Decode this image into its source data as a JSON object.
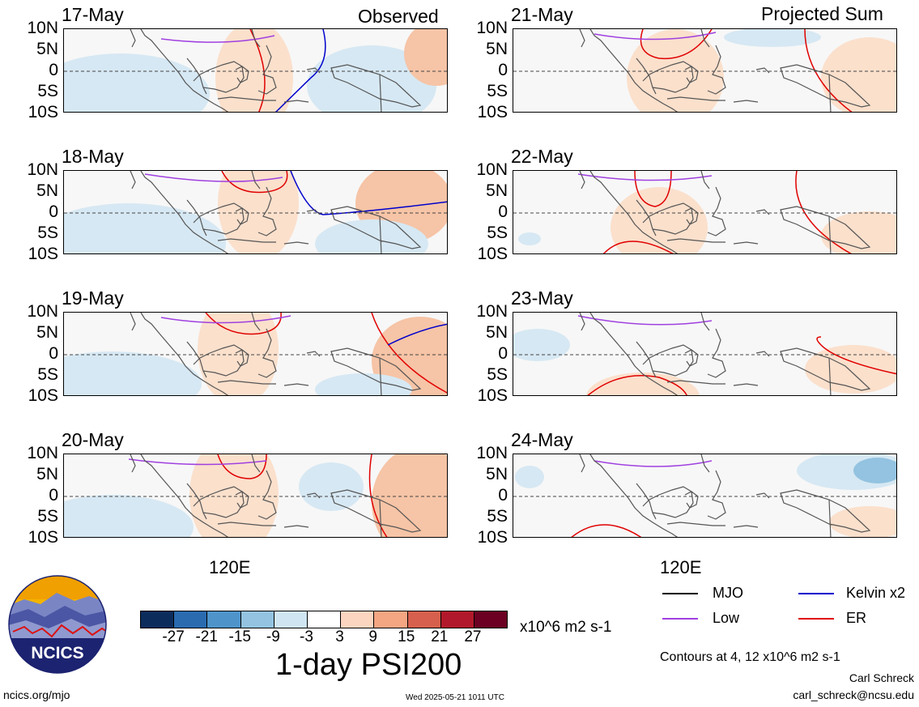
{
  "headers": {
    "left": "Observed",
    "right": "Projected Sum"
  },
  "lat_labels": [
    "10N",
    "5N",
    "0",
    "5S",
    "10S"
  ],
  "panels_left": [
    {
      "date": "17-May"
    },
    {
      "date": "18-May"
    },
    {
      "date": "19-May"
    },
    {
      "date": "20-May"
    }
  ],
  "panels_right": [
    {
      "date": "21-May"
    },
    {
      "date": "22-May"
    },
    {
      "date": "23-May"
    },
    {
      "date": "24-May"
    }
  ],
  "x_tick_label": "120E",
  "legend": {
    "items": [
      {
        "label": "MJO",
        "color": "#000000"
      },
      {
        "label": "Kelvin x2",
        "color": "#0000cc"
      },
      {
        "label": "Low",
        "color": "#a040e0"
      },
      {
        "label": "ER",
        "color": "#e00000"
      }
    ],
    "contour_note": "Contours at 4, 12 x10^6 m2 s-1"
  },
  "colorbar": {
    "ticks": [
      "-27",
      "-21",
      "-15",
      "-9",
      "-3",
      "3",
      "9",
      "15",
      "21",
      "27"
    ],
    "colors": [
      "#0c2d5c",
      "#2a6bb0",
      "#4e94cb",
      "#93c3e0",
      "#cfe5f2",
      "#ffffff",
      "#fcd5c0",
      "#f4a582",
      "#d6604d",
      "#b2182b",
      "#6b0022"
    ],
    "units": "x10^6 m2 s-1",
    "title": "1-day PSI200"
  },
  "logo": {
    "text": "NCICS"
  },
  "footer": {
    "url": "ncics.org/mjo",
    "timestamp": "Wed 2025-05-21 1011 UTC",
    "author": "Carl Schreck",
    "email": "carl_schreck@ncsu.edu"
  }
}
